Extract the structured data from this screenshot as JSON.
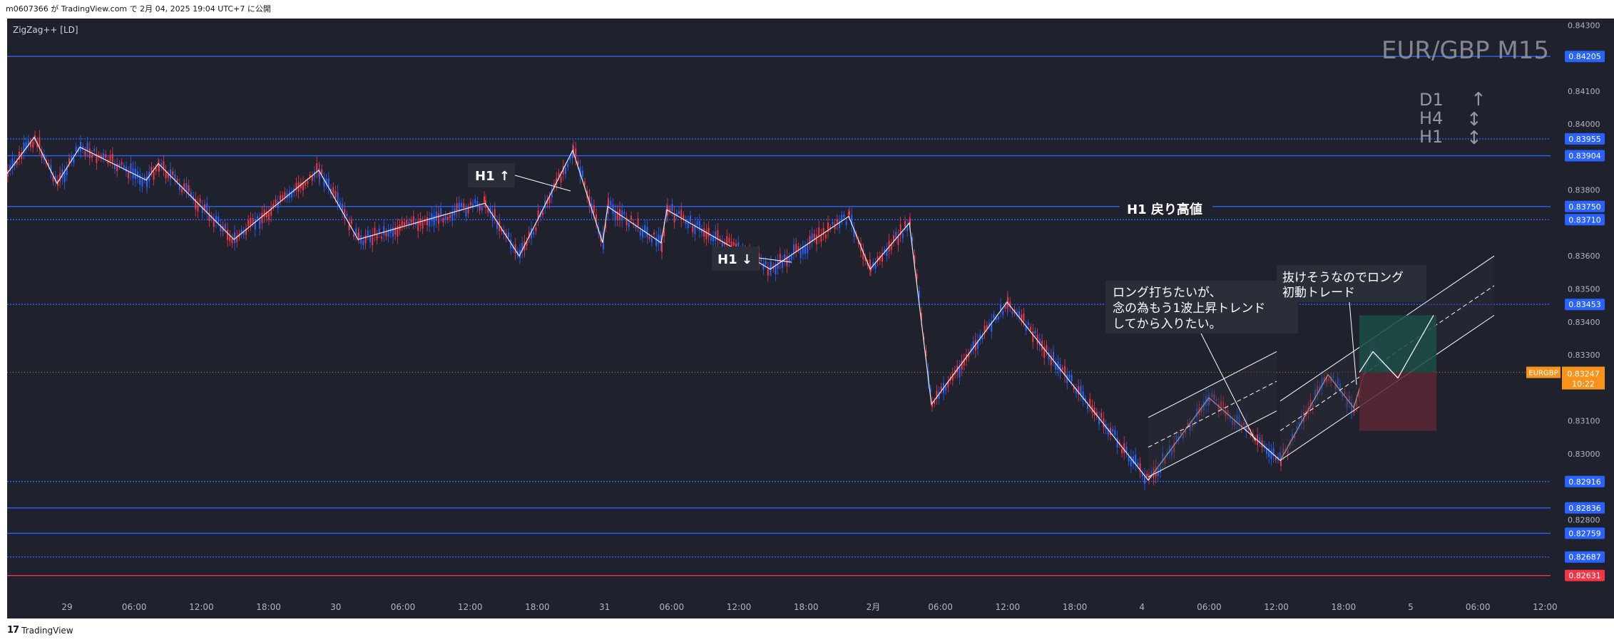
{
  "header": {
    "publish_info": "m0607366 が TradingView.com で 2月 04, 2025 19:04 UTC+7 に公開"
  },
  "footer": {
    "brand": "TradingView"
  },
  "indicator": {
    "label": "ZigZag++ [LD]"
  },
  "watermark": {
    "symbol": "EUR/GBP M15"
  },
  "timeframes": [
    {
      "label": "D1",
      "arrow": "↑"
    },
    {
      "label": "H4",
      "arrow": "↕"
    },
    {
      "label": "H1",
      "arrow": "↕"
    }
  ],
  "colors": {
    "background": "#1f222d",
    "level_line": "#2962ff",
    "support_red": "#f23645",
    "candle_up": "#2962ff",
    "candle_down": "#f23645",
    "zigzag": "#ffffff",
    "current_price": "#f7931a",
    "target_zone": "#1b4d46",
    "stop_zone": "#5a2634"
  },
  "annotations": {
    "h1_up": "H1 ↑",
    "h1_down": "H1 ↓",
    "h1_pullback_high": "H1 戻り高値",
    "note_long": [
      "ロング打ちたいが、",
      "念の為もう1波上昇トレンド",
      "してから入りたい。"
    ],
    "note_breakout": [
      "抜けそうなのでロング",
      "初動トレード"
    ]
  },
  "chart_data": {
    "type": "candlestick",
    "symbol": "EURGBP",
    "timeframe": "M15",
    "ylim": [
      0.826,
      0.8432
    ],
    "y_ticks": [
      "0.84300",
      "0.84100",
      "0.84000",
      "0.83800",
      "0.83600",
      "0.83500",
      "0.83400",
      "0.83300",
      "0.83100",
      "0.83000",
      "0.82800"
    ],
    "x_ticks": [
      "29",
      "06:00",
      "12:00",
      "18:00",
      "30",
      "06:00",
      "12:00",
      "18:00",
      "31",
      "06:00",
      "12:00",
      "18:00",
      "2月",
      "06:00",
      "12:00",
      "18:00",
      "4",
      "06:00",
      "12:00",
      "18:00",
      "5",
      "06:00",
      "12:00"
    ],
    "levels": [
      {
        "price": 0.84205,
        "label": "0.84205",
        "style": "solid",
        "color": "#2962ff"
      },
      {
        "price": 0.83955,
        "label": "0.83955",
        "style": "dotted",
        "color": "#2962ff"
      },
      {
        "price": 0.83904,
        "label": "0.83904",
        "style": "solid",
        "color": "#2962ff"
      },
      {
        "price": 0.8375,
        "label": "0.83750",
        "style": "solid",
        "color": "#2962ff"
      },
      {
        "price": 0.8371,
        "label": "0.83710",
        "style": "dotted",
        "color": "#2962ff"
      },
      {
        "price": 0.83453,
        "label": "0.83453",
        "style": "dotted",
        "color": "#2962ff"
      },
      {
        "price": 0.82916,
        "label": "0.82916",
        "style": "dotted",
        "color": "#2962ff"
      },
      {
        "price": 0.82836,
        "label": "0.82836",
        "style": "solid",
        "color": "#2962ff"
      },
      {
        "price": 0.82759,
        "label": "0.82759",
        "style": "solid",
        "color": "#2962ff"
      },
      {
        "price": 0.82687,
        "label": "0.82687",
        "style": "dotted",
        "color": "#2962ff"
      },
      {
        "price": 0.82631,
        "label": "0.82631",
        "style": "solid",
        "color": "#f23645"
      }
    ],
    "current_price": {
      "symbol": "EURGBP",
      "price": 0.83247,
      "label": "0.83247",
      "countdown": "10:22"
    },
    "zigzag": [
      [
        0,
        0.8385
      ],
      [
        1,
        0.8396
      ],
      [
        2,
        0.8382
      ],
      [
        3,
        0.8393
      ],
      [
        4,
        0.8383
      ],
      [
        5,
        0.8388
      ],
      [
        6,
        0.8365
      ],
      [
        7,
        0.8386
      ],
      [
        8,
        0.8365
      ],
      [
        9,
        0.8376
      ],
      [
        10,
        0.836
      ],
      [
        11,
        0.8392
      ],
      [
        12,
        0.8364
      ],
      [
        13,
        0.8375
      ],
      [
        14,
        0.8364
      ],
      [
        15,
        0.8374
      ],
      [
        16,
        0.8356
      ],
      [
        17,
        0.8372
      ],
      [
        18,
        0.8356
      ],
      [
        19,
        0.837
      ],
      [
        20,
        0.8315
      ],
      [
        21,
        0.8346
      ],
      [
        22,
        0.8292
      ],
      [
        23,
        0.8317
      ],
      [
        24,
        0.8298
      ],
      [
        25,
        0.8324
      ],
      [
        26,
        0.8314
      ],
      [
        27,
        0.8331
      ],
      [
        28,
        0.8323
      ]
    ],
    "trade": {
      "entry": 0.83247,
      "target": 0.8342,
      "stop": 0.8307
    },
    "channels": [
      {
        "from": 0.8293,
        "to": 0.8313,
        "width": 0.0018
      },
      {
        "from": 0.8298,
        "to": 0.8342,
        "width": 0.0018
      }
    ]
  }
}
